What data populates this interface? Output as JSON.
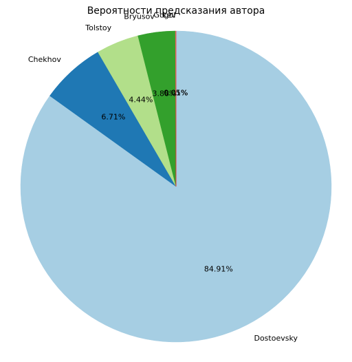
{
  "chart_data": {
    "type": "pie",
    "title": "Вероятности предсказания автора",
    "start_angle_deg": 90,
    "direction": "clockwise",
    "slices": [
      {
        "label": "Dostoevsky",
        "value": 84.91,
        "pct_label": "84.91%",
        "color": "#a6cee3"
      },
      {
        "label": "Chekhov",
        "value": 6.71,
        "pct_label": "6.71%",
        "color": "#1f78b4"
      },
      {
        "label": "Tolstoy",
        "value": 4.44,
        "pct_label": "4.44%",
        "color": "#b2df8a"
      },
      {
        "label": "Bryusov",
        "value": 3.88,
        "pct_label": "3.88%",
        "color": "#33a02c"
      },
      {
        "label": "Gogol",
        "value": 0.05,
        "pct_label": "0.05%",
        "color": "#fb9a99"
      },
      {
        "label": "Lev",
        "value": 0.01,
        "pct_label": "0.01%",
        "color": "#e31a1c"
      }
    ]
  }
}
